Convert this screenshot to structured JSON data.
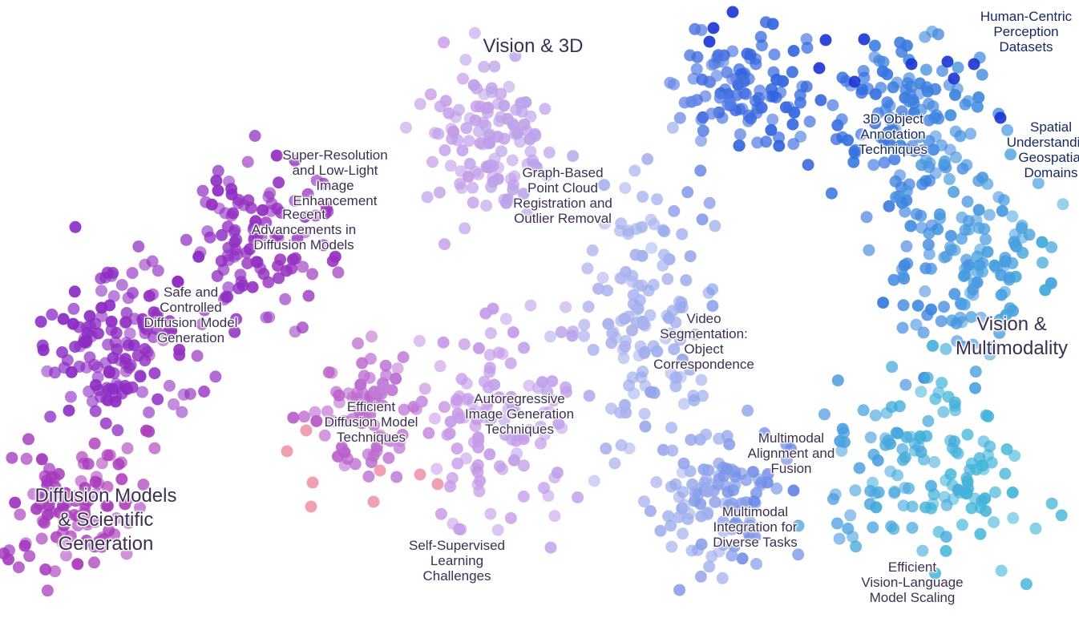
{
  "map": {
    "region_labels": {
      "diffusion_scientific": "Diffusion Models\n& Scientific\nGeneration",
      "vision_3d": "Vision & 3D",
      "vision_multimodality": "Vision &\nMultimodality"
    },
    "topic_labels": {
      "human_centric": "Human-Centric\nPerception\nDatasets",
      "annotation_3d": "3D Object\nAnnotation\nTechniques",
      "spatial_geospatial": "Spatial\nUnderstanding\nGeospatial\nDomains",
      "super_resolution": "Super-Resolution\nand Low-Light\nImage\nEnhancement",
      "recent_diffusion": "Recent\nAdvancements in\nDiffusion Models",
      "graph_point_cloud": "Graph-Based\nPoint Cloud\nRegistration and\nOutlier Removal",
      "safe_diffusion": "Safe and\nControlled\nDiffusion Model\nGeneration",
      "video_segmentation": "Video\nSegmentation:\nObject\nCorrespondence",
      "efficient_diffusion": "Efficient\nDiffusion Model\nTechniques",
      "autoregressive": "Autoregressive\nImage Generation\nTechniques",
      "multimodal_alignment": "Multimodal\nAlignment and\nFusion",
      "multimodal_integration": "Multimodal\nIntegration for\nDiverse Tasks",
      "self_supervised": "Self-Supervised\nLearning\nChallenges",
      "efficient_vlm": "Efficient\nVision-Language\nModel Scaling"
    },
    "colors": {
      "diffusion_purple": "#8a2bc4",
      "magenta": "#b23fb8",
      "lavender": "#c79ae8",
      "periwinkle": "#a9b4ee",
      "royal_blue": "#2f62de",
      "navy_blue": "#1a34d4",
      "sky_blue": "#4a9be0",
      "cyan": "#42b6d8",
      "pink": "#ef8fa7",
      "label_text": "#3d2f52",
      "label_text_navy": "#16275e"
    }
  }
}
